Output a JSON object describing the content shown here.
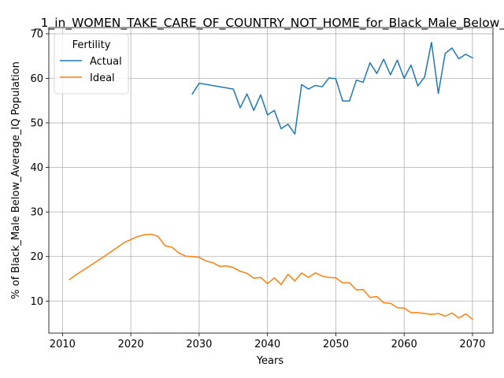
{
  "chart_data": {
    "type": "line",
    "title": "_1_in_WOMEN_TAKE_CARE_OF_COUNTRY_NOT_HOME_for_Black_Male_Below_",
    "xlabel": "Years",
    "ylabel": "% of Black_Male Below_Average_IQ Population",
    "xlim": [
      2008,
      2073
    ],
    "ylim": [
      2.8,
      71.4
    ],
    "xticks": [
      2010,
      2020,
      2030,
      2040,
      2050,
      2060,
      2070
    ],
    "yticks": [
      10,
      20,
      30,
      40,
      50,
      60,
      70
    ],
    "grid": true,
    "legend": {
      "title": "Fertility",
      "placement": "upper-left"
    },
    "series": [
      {
        "name": "Actual",
        "color": "#1f77b4",
        "x": [
          2029,
          2030,
          2035,
          2036,
          2037,
          2038,
          2039,
          2040,
          2041,
          2042,
          2043,
          2044,
          2045,
          2046,
          2047,
          2048,
          2049,
          2050,
          2051,
          2052,
          2053,
          2054,
          2055,
          2056,
          2057,
          2058,
          2059,
          2060,
          2061,
          2062,
          2063,
          2064,
          2065,
          2066,
          2067,
          2068,
          2069,
          2070
        ],
        "y": [
          56.5,
          58.9,
          57.6,
          53.4,
          56.5,
          52.8,
          56.3,
          51.8,
          52.8,
          48.7,
          49.7,
          47.5,
          58.6,
          57.6,
          58.4,
          58.1,
          60.1,
          59.9,
          54.9,
          54.9,
          59.6,
          59.1,
          63.5,
          61.1,
          64.3,
          60.8,
          64.1,
          60.0,
          63.0,
          58.3,
          60.3,
          68.1,
          56.6,
          65.6,
          66.8,
          64.4,
          65.4,
          64.6
        ]
      },
      {
        "name": "Ideal",
        "color": "#ff7f0e",
        "x": [
          2011,
          2012,
          2013,
          2014,
          2015,
          2016,
          2017,
          2018,
          2019,
          2020,
          2021,
          2022,
          2023,
          2024,
          2025,
          2026,
          2027,
          2028,
          2029,
          2030,
          2031,
          2032,
          2033,
          2034,
          2035,
          2036,
          2037,
          2038,
          2039,
          2040,
          2041,
          2042,
          2043,
          2044,
          2045,
          2046,
          2047,
          2048,
          2049,
          2050,
          2051,
          2052,
          2053,
          2054,
          2055,
          2056,
          2057,
          2058,
          2059,
          2060,
          2061,
          2062,
          2063,
          2064,
          2065,
          2066,
          2067,
          2068,
          2069,
          2070
        ],
        "y": [
          14.8,
          15.9,
          16.9,
          17.9,
          18.9,
          19.9,
          21.0,
          22.0,
          23.1,
          23.8,
          24.5,
          24.9,
          25.0,
          24.5,
          22.4,
          22.1,
          20.8,
          20.1,
          20.0,
          19.8,
          19.0,
          18.6,
          17.8,
          17.9,
          17.5,
          16.7,
          16.2,
          15.1,
          15.3,
          13.9,
          15.2,
          13.7,
          16.0,
          14.5,
          16.3,
          15.3,
          16.3,
          15.6,
          15.3,
          15.2,
          14.1,
          14.1,
          12.5,
          12.6,
          10.8,
          11.0,
          9.6,
          9.5,
          8.5,
          8.4,
          7.4,
          7.4,
          7.2,
          7.0,
          7.2,
          6.6,
          7.3,
          6.2,
          7.1,
          5.9
        ]
      }
    ]
  }
}
